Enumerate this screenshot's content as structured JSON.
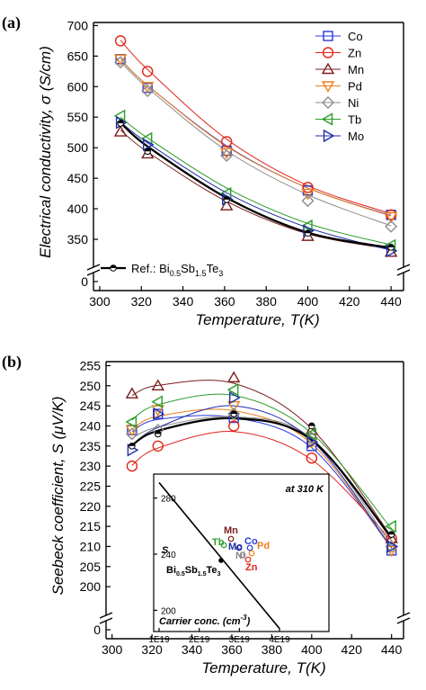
{
  "chart_data": [
    {
      "panel": "(a)",
      "type": "line",
      "xlabel_main": "Temperature, ",
      "xlabel_var": "T",
      "xlabel_unit": "(K)",
      "ylabel": "Electrical conductivity, σ (S/cm)",
      "xlim": [
        297,
        446
      ],
      "ylim_upper": [
        325,
        705
      ],
      "x_ticks": [
        300,
        320,
        340,
        360,
        380,
        400,
        420,
        440
      ],
      "y_ticks": [
        350,
        400,
        450,
        500,
        550,
        600,
        650,
        700
      ],
      "y_tick_zero": 0,
      "axis_break": true,
      "x": [
        310,
        323,
        361,
        400,
        440
      ],
      "series": [
        {
          "name": "Co",
          "color": "#2a3bd9",
          "marker": "square",
          "values": [
            645,
            598,
            495,
            430,
            390
          ],
          "fit": [
            645,
            602,
            503,
            434,
            389
          ]
        },
        {
          "name": "Zn",
          "color": "#e0251b",
          "marker": "circle",
          "values": [
            675,
            625,
            510,
            435,
            390
          ],
          "fit": [
            676,
            628,
            514,
            438,
            392
          ]
        },
        {
          "name": "Mn",
          "color": "#7b1d1d",
          "marker": "triangle-up",
          "values": [
            526,
            490,
            405,
            355,
            329
          ],
          "fit": [
            529,
            493,
            412,
            359,
            334
          ]
        },
        {
          "name": "Pd",
          "color": "#ee7f1a",
          "marker": "triangle-down",
          "values": [
            645,
            600,
            492,
            425,
            387
          ],
          "fit": [
            645,
            602,
            502,
            434,
            388
          ]
        },
        {
          "name": "Ni",
          "color": "#8c8c8c",
          "marker": "diamond",
          "values": [
            640,
            593,
            487,
            413,
            371
          ],
          "fit": [
            641,
            598,
            495,
            423,
            372
          ]
        },
        {
          "name": "Tb",
          "color": "#2a9d2a",
          "marker": "triangle-left",
          "values": [
            552,
            515,
            425,
            372,
            340
          ],
          "fit": [
            550,
            516,
            434,
            376,
            341
          ]
        },
        {
          "name": "Mo",
          "color": "#1f2fa8",
          "marker": "triangle-right",
          "values": [
            541,
            505,
            416,
            364,
            331
          ],
          "fit": [
            542,
            508,
            426,
            369,
            332
          ]
        }
      ],
      "reference": {
        "label_prefix": "Ref.: Bi",
        "label_sub1": "0.5",
        "label_mid1": "Sb",
        "label_sub2": "1.5",
        "label_mid2": "Te",
        "label_sub3": "3",
        "values": [
          540,
          494,
          415,
          360,
          337
        ],
        "fit": [
          541,
          502,
          418,
          361,
          336
        ]
      }
    },
    {
      "panel": "(b)",
      "type": "line",
      "xlabel_main": "Temperature, ",
      "xlabel_var": "T",
      "xlabel_unit": "(K)",
      "ylabel": "Seebeck coefficient, S (μV/K)",
      "xlim": [
        297,
        446
      ],
      "ylim_upper": [
        196,
        256
      ],
      "x_ticks": [
        300,
        320,
        340,
        360,
        380,
        400,
        420,
        440
      ],
      "y_ticks": [
        200,
        205,
        210,
        215,
        220,
        225,
        230,
        235,
        240,
        245,
        250,
        255
      ],
      "y_tick_zero": 0,
      "axis_break": true,
      "x": [
        310,
        323,
        361,
        400,
        440
      ],
      "series": [
        {
          "name": "Co",
          "values": [
            239,
            243,
            242,
            235,
            209
          ],
          "fit": [
            238.6,
            241.6,
            242.1,
            234.6,
            209.6
          ]
        },
        {
          "name": "Zn",
          "values": [
            230,
            235,
            240,
            232,
            212
          ],
          "fit": [
            230.2,
            234.5,
            238.6,
            231.6,
            211.5
          ]
        },
        {
          "name": "Mn",
          "values": [
            248,
            250,
            252,
            239,
            212
          ],
          "fit": [
            247.6,
            250.1,
            250.6,
            239.3,
            212.4
          ]
        },
        {
          "name": "Pd",
          "values": [
            239,
            244,
            245,
            236,
            209
          ],
          "fit": [
            239.2,
            242.4,
            243.8,
            235.6,
            209.6
          ]
        },
        {
          "name": "Ni",
          "values": [
            238,
            239,
            243,
            237,
            210
          ],
          "fit": [
            236.9,
            239.7,
            242.3,
            236.9,
            210.3
          ]
        },
        {
          "name": "Tb",
          "values": [
            241,
            246,
            249,
            238,
            215
          ],
          "fit": [
            241.5,
            245.3,
            247.6,
            238.2,
            214.4
          ]
        },
        {
          "name": "Mo",
          "values": [
            234,
            243,
            247,
            236,
            210
          ],
          "fit": [
            235.0,
            239.6,
            245.0,
            236.4,
            209.6
          ]
        }
      ],
      "reference": {
        "values": [
          235,
          238,
          243,
          240,
          213
        ],
        "fit": [
          235.2,
          238.8,
          241.9,
          236.5,
          212.1
        ]
      },
      "inset": {
        "title": "at 310 K",
        "ylabel": "S",
        "xlabel": "Carrier conc. (cm",
        "xlabel_sup": "-3",
        "xlabel_close": ")",
        "x_ticks": [
          "1E19",
          "2E19",
          "3E19",
          "4E19"
        ],
        "y_ticks": [
          200,
          240,
          280
        ],
        "line_x": [
          1e+19,
          4e+19
        ],
        "line_y": [
          291,
          187
        ],
        "ref_label": {
          "prefix": "Bi",
          "sub1": "0.5",
          "mid1": "Sb",
          "sub2": "1.5",
          "mid2": "Te",
          "sub3": "3"
        },
        "labels": [
          {
            "name": "Mn",
            "color": "#7b1d1d"
          },
          {
            "name": "Tb",
            "color": "#2a9d2a"
          },
          {
            "name": "Mo",
            "color": "#1f2fa8"
          },
          {
            "name": "Co",
            "color": "#2a3bd9"
          },
          {
            "name": "Ni",
            "color": "#8c8c8c"
          },
          {
            "name": "Pd",
            "color": "#ee7f1a"
          },
          {
            "name": "Zn",
            "color": "#e0251b"
          }
        ]
      }
    }
  ]
}
